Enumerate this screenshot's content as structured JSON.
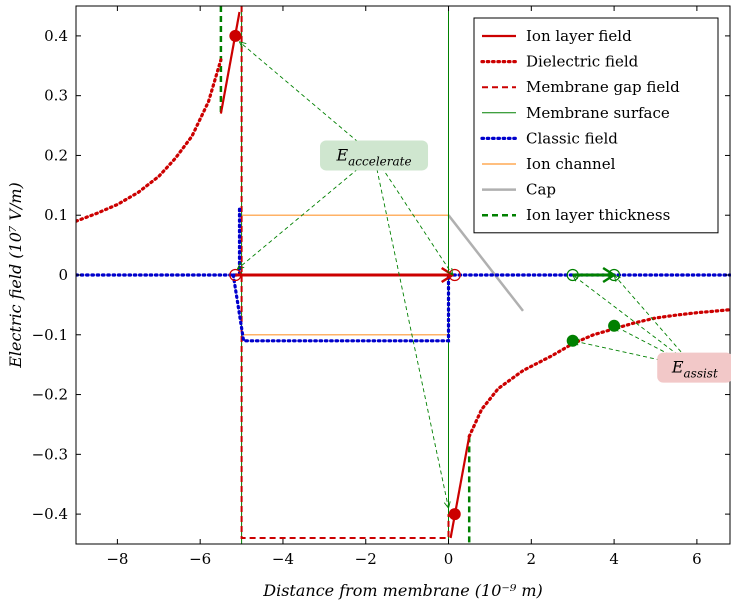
{
  "chart_data": {
    "type": "line",
    "xlabel": "Distance from membrane (10⁻⁹ m)",
    "ylabel": "Electric field (10⁷ V/m)",
    "xlim": [
      -9,
      6.8
    ],
    "ylim": [
      -0.45,
      0.45
    ],
    "x_ticks": [
      -8,
      -6,
      -4,
      -2,
      0,
      2,
      4,
      6
    ],
    "x_tick_labels": [
      "−8",
      "−6",
      "−4",
      "−2",
      "0",
      "2",
      "4",
      "6"
    ],
    "y_ticks": [
      -0.4,
      -0.3,
      -0.2,
      -0.1,
      0,
      0.1,
      0.2,
      0.3,
      0.4
    ],
    "y_tick_labels": [
      "−0.4",
      "−0.3",
      "−0.2",
      "−0.1",
      "0",
      "0.1",
      "0.2",
      "0.3",
      "0.4"
    ],
    "grid": false,
    "legend_position": "top-right",
    "colors": {
      "ion_layer": "#cc0000",
      "dielectric": "#cc0000",
      "gap": "#cc0000",
      "membrane": "#008000",
      "classic": "#0000cc",
      "channel": "#ff9933",
      "cap": "#b0b0b0",
      "thickness": "#008000",
      "ann_accel_bg": "#cfe6cf",
      "ann_assist_bg": "#f2c8c8"
    },
    "series": [
      {
        "name": "Ion layer field",
        "style": "solid-red",
        "segments": [
          [
            [
              -5.5,
              0.27
            ],
            [
              -5.05,
              0.44
            ]
          ],
          [
            [
              0.05,
              -0.44
            ],
            [
              0.5,
              -0.27
            ]
          ]
        ]
      },
      {
        "name": "Dielectric field",
        "style": "dotted-red",
        "segments": [
          [
            [
              -9,
              0.09
            ],
            [
              -8.5,
              0.103
            ],
            [
              -8,
              0.118
            ],
            [
              -7.5,
              0.138
            ],
            [
              -7,
              0.165
            ],
            [
              -6.6,
              0.195
            ],
            [
              -6.2,
              0.232
            ],
            [
              -5.8,
              0.29
            ],
            [
              -5.5,
              0.36
            ]
          ],
          [
            [
              0.5,
              -0.27
            ],
            [
              0.8,
              -0.225
            ],
            [
              1.2,
              -0.19
            ],
            [
              1.8,
              -0.16
            ],
            [
              2.5,
              -0.135
            ],
            [
              3,
              -0.115
            ],
            [
              3.5,
              -0.1
            ],
            [
              4,
              -0.09
            ],
            [
              4.5,
              -0.08
            ],
            [
              5,
              -0.072
            ],
            [
              5.5,
              -0.067
            ],
            [
              6,
              -0.063
            ],
            [
              6.5,
              -0.06
            ],
            [
              6.8,
              -0.058
            ]
          ]
        ]
      },
      {
        "name": "Membrane gap field",
        "style": "dashed-red",
        "segments": [
          [
            [
              -5,
              0.45
            ],
            [
              -5,
              -0.44
            ],
            [
              0,
              -0.44
            ],
            [
              0,
              -0.4
            ]
          ]
        ]
      },
      {
        "name": "Membrane surface",
        "style": "solid-green-thin",
        "segments": [
          [
            [
              -5,
              0.45
            ],
            [
              -5,
              -0.45
            ]
          ],
          [
            [
              0,
              0.45
            ],
            [
              0,
              -0.45
            ]
          ]
        ]
      },
      {
        "name": "Classic field",
        "style": "dotted-blue",
        "segments": [
          [
            [
              -9,
              0
            ],
            [
              -5.05,
              0
            ]
          ],
          [
            [
              -5.05,
              0.11
            ],
            [
              -5.05,
              0
            ]
          ],
          [
            [
              -5.2,
              0
            ],
            [
              -4.95,
              -0.11
            ],
            [
              0,
              -0.11
            ],
            [
              0,
              0
            ]
          ],
          [
            [
              0,
              0
            ],
            [
              6.8,
              0
            ]
          ]
        ]
      },
      {
        "name": "Ion channel",
        "style": "solid-orange",
        "segments": [
          [
            [
              -5,
              0.1
            ],
            [
              0,
              0.1
            ]
          ],
          [
            [
              -5,
              -0.1
            ],
            [
              0,
              -0.1
            ]
          ]
        ]
      },
      {
        "name": "Cap",
        "style": "solid-gray",
        "segments": [
          [
            [
              0,
              0.1
            ],
            [
              1.8,
              -0.06
            ]
          ]
        ]
      },
      {
        "name": "Ion layer thickness",
        "style": "dashed-green",
        "segments": [
          [
            [
              -5.5,
              0.45
            ],
            [
              -5.5,
              0.27
            ]
          ],
          [
            [
              0.5,
              -0.27
            ],
            [
              0.5,
              -0.45
            ]
          ]
        ]
      }
    ],
    "points": [
      {
        "x": -5.15,
        "y": 0.4,
        "kind": "filled-red"
      },
      {
        "x": 0.15,
        "y": -0.4,
        "kind": "filled-red"
      },
      {
        "x": 3,
        "y": -0.11,
        "kind": "filled-green"
      },
      {
        "x": 4,
        "y": -0.085,
        "kind": "filled-green"
      },
      {
        "x": -5.15,
        "y": 0,
        "kind": "open-red"
      },
      {
        "x": 0.15,
        "y": 0,
        "kind": "open-red"
      },
      {
        "x": 3,
        "y": 0,
        "kind": "open-green"
      },
      {
        "x": 4,
        "y": 0,
        "kind": "open-green"
      }
    ],
    "arrows": [
      {
        "name": "ion-layer-field-arrow",
        "from": [
          -5.15,
          0
        ],
        "to": [
          0.1,
          0
        ],
        "color": "red"
      },
      {
        "name": "assist-field-arrow",
        "from": [
          3,
          0
        ],
        "to": [
          4,
          0
        ],
        "color": "green"
      }
    ],
    "annotations": [
      {
        "name": "accelerate-label",
        "base": "E",
        "sub": "accelerate",
        "x": -1.8,
        "y": 0.2,
        "bg": "ann_accel_bg",
        "targets": [
          [
            -5.05,
            0.39
          ],
          [
            -5.1,
            0.01
          ],
          [
            0,
            -0.39
          ],
          [
            0.1,
            0
          ]
        ]
      },
      {
        "name": "assist-label",
        "base": "E",
        "sub": "assist",
        "x": 5.95,
        "y": -0.155,
        "bg": "ann_assist_bg",
        "targets": [
          [
            3,
            -0.11
          ],
          [
            4,
            -0.085
          ],
          [
            3,
            0
          ],
          [
            4,
            0
          ]
        ]
      }
    ]
  }
}
